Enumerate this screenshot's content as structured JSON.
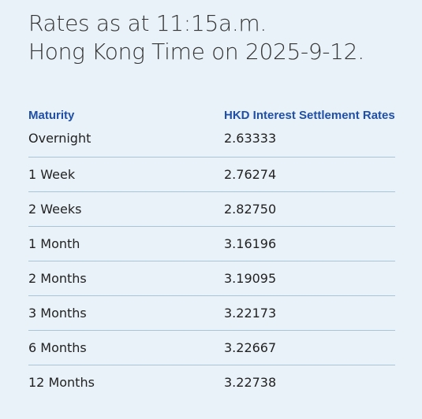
{
  "heading": {
    "line1": "Rates as at 11:15a.m.",
    "line2": "Hong Kong Time on 2025-9-12."
  },
  "table": {
    "headers": {
      "maturity": "Maturity",
      "rate": "HKD Interest Settlement Rates"
    },
    "rows": [
      {
        "maturity": "Overnight",
        "rate": "2.63333"
      },
      {
        "maturity": "1 Week",
        "rate": "2.76274"
      },
      {
        "maturity": "2 Weeks",
        "rate": "2.82750"
      },
      {
        "maturity": "1 Month",
        "rate": "3.16196"
      },
      {
        "maturity": "2 Months",
        "rate": "3.19095"
      },
      {
        "maturity": "3 Months",
        "rate": "3.22173"
      },
      {
        "maturity": "6 Months",
        "rate": "3.22667"
      },
      {
        "maturity": "12 Months",
        "rate": "3.22738"
      }
    ]
  },
  "colors": {
    "background": "#e8f2f8",
    "header_text": "#1f4fa8",
    "row_divider": "#a9c6d8"
  }
}
